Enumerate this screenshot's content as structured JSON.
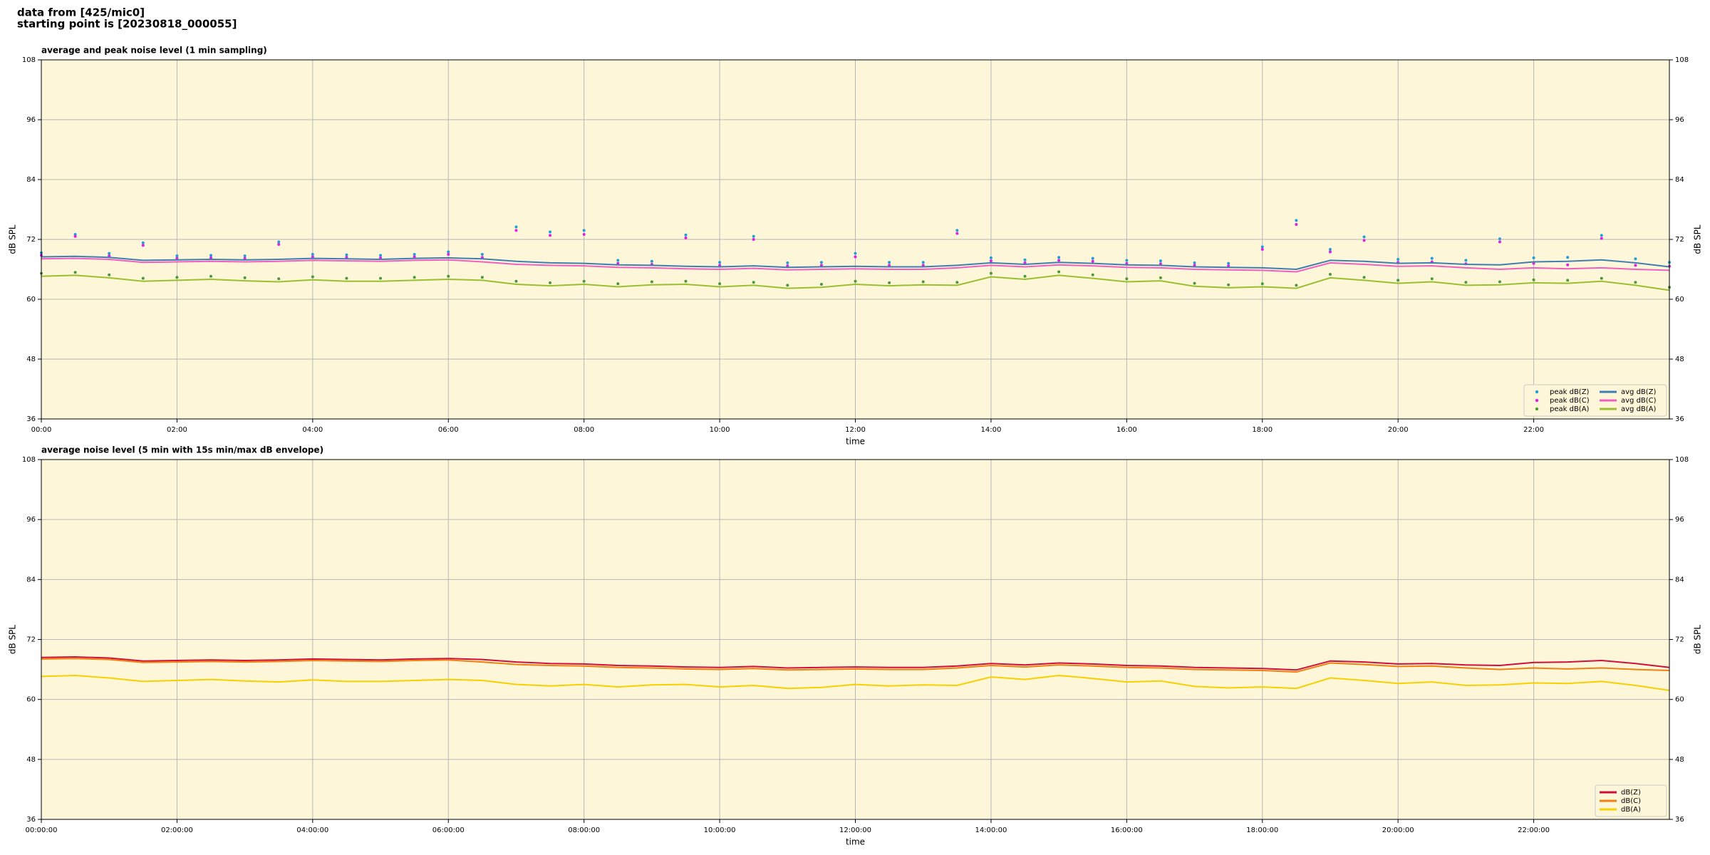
{
  "header": {
    "lines": [
      "data from [425/mic0]",
      "starting point is [20230818_000055]"
    ]
  },
  "chart_data": [
    {
      "type": "line",
      "title": "average and peak noise level (1 min sampling)",
      "xlabel": "time",
      "ylabel": "dB SPL",
      "legend": "lower right",
      "grid": true,
      "legend_columns": 2,
      "x": [
        0,
        0.5,
        1,
        1.5,
        2,
        2.5,
        3,
        3.5,
        4,
        4.5,
        5,
        5.5,
        6,
        6.5,
        7,
        7.5,
        8,
        8.5,
        9,
        9.5,
        10,
        10.5,
        11,
        11.5,
        12,
        12.5,
        13,
        13.5,
        14,
        14.5,
        15,
        15.5,
        16,
        16.5,
        17,
        17.5,
        18,
        18.5,
        19,
        19.5,
        20,
        20.5,
        21,
        21.5,
        22,
        22.5,
        23,
        23.5,
        24
      ],
      "xlim": [
        0,
        24
      ],
      "xticks": [
        {
          "value": 0,
          "label": "00:00"
        },
        {
          "value": 2,
          "label": "02:00"
        },
        {
          "value": 4,
          "label": "04:00"
        },
        {
          "value": 6,
          "label": "06:00"
        },
        {
          "value": 8,
          "label": "08:00"
        },
        {
          "value": 10,
          "label": "10:00"
        },
        {
          "value": 12,
          "label": "12:00"
        },
        {
          "value": 14,
          "label": "14:00"
        },
        {
          "value": 16,
          "label": "16:00"
        },
        {
          "value": 18,
          "label": "18:00"
        },
        {
          "value": 20,
          "label": "20:00"
        },
        {
          "value": 22,
          "label": "22:00"
        }
      ],
      "ylim": [
        36,
        108
      ],
      "yticks": [
        36,
        48,
        60,
        72,
        84,
        96,
        108
      ],
      "series": [
        {
          "name": "peak dB(Z)",
          "color": "#1f9fd8",
          "style": "dots",
          "values": [
            69.3,
            73.0,
            69.2,
            71.3,
            68.7,
            68.8,
            68.7,
            71.5,
            69.0,
            68.9,
            68.8,
            69.0,
            69.5,
            69.0,
            74.5,
            73.5,
            73.8,
            67.8,
            67.6,
            72.9,
            67.4,
            72.6,
            67.3,
            67.4,
            69.2,
            67.4,
            67.4,
            73.8,
            68.3,
            67.9,
            68.4,
            68.2,
            67.8,
            67.7,
            67.3,
            67.2,
            70.5,
            75.8,
            70.0,
            72.5,
            68.0,
            68.2,
            67.8,
            72.1,
            68.3,
            68.4,
            72.8,
            68.1,
            67.4
          ]
        },
        {
          "name": "peak dB(C)",
          "color": "#e020e0",
          "style": "dots",
          "values": [
            68.8,
            72.6,
            68.7,
            70.8,
            68.2,
            68.3,
            68.2,
            71.0,
            68.5,
            68.4,
            68.3,
            68.5,
            69.0,
            68.4,
            73.8,
            72.8,
            73.0,
            67.2,
            67.0,
            72.3,
            66.8,
            72.0,
            66.7,
            66.8,
            68.5,
            66.8,
            66.8,
            73.2,
            67.7,
            67.3,
            67.8,
            67.6,
            67.2,
            67.1,
            66.8,
            66.7,
            70.0,
            75.0,
            69.5,
            71.8,
            67.4,
            67.5,
            67.1,
            71.5,
            67.2,
            66.9,
            72.2,
            66.8,
            66.6
          ]
        },
        {
          "name": "peak dB(A)",
          "color": "#4a9a3a",
          "style": "dots",
          "values": [
            65.2,
            65.4,
            64.9,
            64.2,
            64.4,
            64.6,
            64.3,
            64.1,
            64.5,
            64.2,
            64.2,
            64.4,
            64.6,
            64.4,
            63.6,
            63.3,
            63.6,
            63.1,
            63.5,
            63.6,
            63.1,
            63.4,
            62.8,
            63.0,
            63.6,
            63.3,
            63.5,
            63.4,
            65.2,
            64.6,
            65.5,
            64.9,
            64.1,
            64.3,
            63.2,
            62.9,
            63.1,
            62.8,
            65.0,
            64.4,
            63.8,
            64.1,
            63.4,
            63.5,
            63.9,
            63.8,
            64.2,
            63.4,
            62.4
          ]
        },
        {
          "name": "avg dB(Z)",
          "color": "#3f7fb0",
          "style": "line",
          "values": [
            68.5,
            68.6,
            68.4,
            67.8,
            67.9,
            68.0,
            67.9,
            68.0,
            68.2,
            68.1,
            68.0,
            68.2,
            68.3,
            68.1,
            67.6,
            67.3,
            67.2,
            66.9,
            66.8,
            66.6,
            66.5,
            66.7,
            66.4,
            66.5,
            66.6,
            66.5,
            66.5,
            66.8,
            67.3,
            67.0,
            67.4,
            67.2,
            66.9,
            66.8,
            66.5,
            66.4,
            66.3,
            66.0,
            67.8,
            67.6,
            67.2,
            67.3,
            67.0,
            66.9,
            67.5,
            67.6,
            67.9,
            67.3,
            66.5
          ]
        },
        {
          "name": "avg dB(C)",
          "color": "#f060c0",
          "style": "line",
          "values": [
            68.1,
            68.2,
            68.0,
            67.4,
            67.5,
            67.6,
            67.5,
            67.6,
            67.8,
            67.7,
            67.6,
            67.8,
            67.9,
            67.5,
            67.0,
            66.8,
            66.7,
            66.4,
            66.3,
            66.1,
            66.0,
            66.2,
            65.9,
            66.0,
            66.1,
            66.0,
            66.0,
            66.3,
            66.8,
            66.5,
            66.9,
            66.7,
            66.4,
            66.3,
            66.0,
            65.9,
            65.8,
            65.5,
            67.3,
            67.0,
            66.6,
            66.7,
            66.3,
            66.0,
            66.3,
            66.1,
            66.3,
            66.0,
            65.8
          ]
        },
        {
          "name": "avg dB(A)",
          "color": "#9ac030",
          "style": "line",
          "values": [
            64.6,
            64.8,
            64.3,
            63.6,
            63.8,
            64.0,
            63.7,
            63.5,
            63.9,
            63.6,
            63.6,
            63.8,
            64.0,
            63.8,
            63.0,
            62.7,
            63.0,
            62.5,
            62.9,
            63.0,
            62.5,
            62.8,
            62.2,
            62.4,
            63.0,
            62.7,
            62.9,
            62.8,
            64.5,
            64.0,
            64.8,
            64.2,
            63.5,
            63.7,
            62.6,
            62.3,
            62.5,
            62.2,
            64.3,
            63.8,
            63.2,
            63.5,
            62.8,
            62.9,
            63.3,
            63.2,
            63.6,
            62.8,
            61.8
          ]
        }
      ]
    },
    {
      "type": "line",
      "title": "average noise level (5 min with 15s min/max dB envelope)",
      "xlabel": "time",
      "ylabel": "dB SPL",
      "legend": "lower right",
      "grid": true,
      "legend_columns": 1,
      "x": [
        0,
        0.5,
        1,
        1.5,
        2,
        2.5,
        3,
        3.5,
        4,
        4.5,
        5,
        5.5,
        6,
        6.5,
        7,
        7.5,
        8,
        8.5,
        9,
        9.5,
        10,
        10.5,
        11,
        11.5,
        12,
        12.5,
        13,
        13.5,
        14,
        14.5,
        15,
        15.5,
        16,
        16.5,
        17,
        17.5,
        18,
        18.5,
        19,
        19.5,
        20,
        20.5,
        21,
        21.5,
        22,
        22.5,
        23,
        23.5,
        24
      ],
      "xlim": [
        0,
        24
      ],
      "xticks": [
        {
          "value": 0,
          "label": "00:00:00"
        },
        {
          "value": 2,
          "label": "02:00:00"
        },
        {
          "value": 4,
          "label": "04:00:00"
        },
        {
          "value": 6,
          "label": "06:00:00"
        },
        {
          "value": 8,
          "label": "08:00:00"
        },
        {
          "value": 10,
          "label": "10:00:00"
        },
        {
          "value": 12,
          "label": "12:00:00"
        },
        {
          "value": 14,
          "label": "14:00:00"
        },
        {
          "value": 16,
          "label": "16:00:00"
        },
        {
          "value": 18,
          "label": "18:00:00"
        },
        {
          "value": 20,
          "label": "20:00:00"
        },
        {
          "value": 22,
          "label": "22:00:00"
        }
      ],
      "ylim": [
        36,
        108
      ],
      "yticks": [
        36,
        48,
        60,
        72,
        84,
        96,
        108
      ],
      "series": [
        {
          "name": "dB(Z)",
          "color": "#d0103a",
          "style": "line",
          "values": [
            68.4,
            68.5,
            68.3,
            67.7,
            67.8,
            67.9,
            67.8,
            67.9,
            68.1,
            68.0,
            67.9,
            68.1,
            68.2,
            68.0,
            67.5,
            67.2,
            67.1,
            66.8,
            66.7,
            66.5,
            66.4,
            66.6,
            66.3,
            66.4,
            66.5,
            66.4,
            66.4,
            66.7,
            67.2,
            66.9,
            67.3,
            67.1,
            66.8,
            66.7,
            66.4,
            66.3,
            66.2,
            65.9,
            67.7,
            67.5,
            67.1,
            67.2,
            66.9,
            66.8,
            67.4,
            67.5,
            67.8,
            67.2,
            66.4
          ]
        },
        {
          "name": "dB(C)",
          "color": "#f08010",
          "style": "line",
          "values": [
            68.1,
            68.2,
            68.0,
            67.4,
            67.5,
            67.6,
            67.5,
            67.6,
            67.8,
            67.7,
            67.6,
            67.8,
            67.9,
            67.5,
            67.0,
            66.8,
            66.7,
            66.4,
            66.3,
            66.1,
            66.0,
            66.2,
            65.9,
            66.0,
            66.1,
            66.0,
            66.0,
            66.3,
            66.8,
            66.5,
            66.9,
            66.7,
            66.4,
            66.3,
            66.0,
            65.9,
            65.8,
            65.5,
            67.3,
            67.0,
            66.6,
            66.7,
            66.3,
            66.0,
            66.3,
            66.1,
            66.3,
            66.0,
            65.8
          ]
        },
        {
          "name": "dB(A)",
          "color": "#f8d000",
          "style": "line",
          "values": [
            64.6,
            64.8,
            64.3,
            63.6,
            63.8,
            64.0,
            63.7,
            63.5,
            63.9,
            63.6,
            63.6,
            63.8,
            64.0,
            63.8,
            63.0,
            62.7,
            63.0,
            62.5,
            62.9,
            63.0,
            62.5,
            62.8,
            62.2,
            62.4,
            63.0,
            62.7,
            62.9,
            62.8,
            64.5,
            64.0,
            64.8,
            64.2,
            63.5,
            63.7,
            62.6,
            62.3,
            62.5,
            62.2,
            64.3,
            63.8,
            63.2,
            63.5,
            62.8,
            62.9,
            63.3,
            63.2,
            63.6,
            62.8,
            61.8
          ]
        }
      ]
    }
  ]
}
